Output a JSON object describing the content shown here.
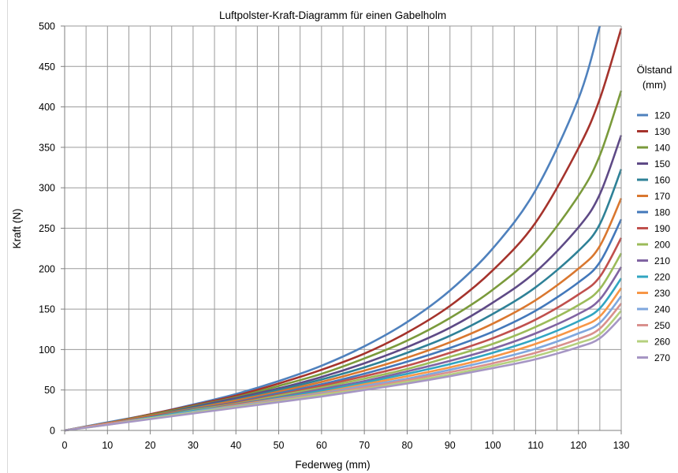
{
  "chart_data": {
    "type": "line",
    "title": "Luftpolster-Kraft-Diagramm für einen Gabelholm",
    "xlabel": "Federweg (mm)",
    "ylabel": "Kraft (N)",
    "xlim": [
      0,
      130
    ],
    "ylim": [
      0,
      500
    ],
    "x_ticks": [
      0,
      10,
      20,
      30,
      40,
      50,
      60,
      70,
      80,
      90,
      100,
      110,
      120,
      130
    ],
    "y_ticks": [
      0,
      50,
      100,
      150,
      200,
      250,
      300,
      350,
      400,
      450,
      500
    ],
    "grid": true,
    "legend": {
      "title_line1": "Ölstand",
      "title_line2": "(mm)",
      "placement": "right"
    },
    "x": [
      0,
      10,
      20,
      30,
      40,
      50,
      60,
      70,
      80,
      90,
      100,
      110,
      120,
      125,
      130
    ],
    "series": [
      {
        "name": "120",
        "color": "#4F81BD",
        "values": [
          0,
          10,
          20,
          32,
          45,
          61,
          80,
          104,
          134,
          173,
          225,
          297,
          410,
          500,
          null
        ]
      },
      {
        "name": "130",
        "color": "#A5332C",
        "values": [
          0,
          9,
          20,
          31,
          43,
          58,
          75,
          95,
          121,
          154,
          198,
          257,
          349,
          410,
          497
        ]
      },
      {
        "name": "140",
        "color": "#7A9A3B",
        "values": [
          0,
          9,
          19,
          30,
          41,
          55,
          70,
          89,
          111,
          139,
          174,
          220,
          290,
          340,
          420
        ]
      },
      {
        "name": "150",
        "color": "#5E4A86",
        "values": [
          0,
          9,
          18,
          29,
          40,
          52,
          66,
          83,
          103,
          127,
          158,
          196,
          251,
          292,
          365
        ]
      },
      {
        "name": "160",
        "color": "#2E8197",
        "values": [
          0,
          9,
          18,
          28,
          38,
          50,
          63,
          78,
          96,
          117,
          144,
          177,
          222,
          255,
          323
        ]
      },
      {
        "name": "170",
        "color": "#D9772F",
        "values": [
          0,
          9,
          18,
          27,
          37,
          48,
          60,
          74,
          90,
          109,
          132,
          161,
          200,
          228,
          287
        ]
      },
      {
        "name": "180",
        "color": "#4378BA",
        "values": [
          0,
          8,
          17,
          26,
          35,
          46,
          57,
          70,
          85,
          102,
          122,
          148,
          183,
          208,
          261
        ]
      },
      {
        "name": "190",
        "color": "#C0504D",
        "values": [
          0,
          8,
          17,
          25,
          34,
          44,
          55,
          67,
          80,
          96,
          114,
          137,
          168,
          190,
          238
        ]
      },
      {
        "name": "200",
        "color": "#9BBB59",
        "values": [
          0,
          8,
          16,
          25,
          33,
          43,
          53,
          64,
          76,
          91,
          107,
          128,
          155,
          175,
          219
        ]
      },
      {
        "name": "210",
        "color": "#8064A2",
        "values": [
          0,
          8,
          16,
          24,
          32,
          41,
          51,
          61,
          73,
          86,
          101,
          120,
          144,
          162,
          202
        ]
      },
      {
        "name": "220",
        "color": "#31A5C1",
        "values": [
          0,
          8,
          16,
          24,
          31,
          40,
          49,
          59,
          70,
          82,
          96,
          113,
          135,
          151,
          188
        ]
      },
      {
        "name": "230",
        "color": "#F79646",
        "values": [
          0,
          8,
          15,
          23,
          31,
          39,
          47,
          57,
          67,
          78,
          91,
          107,
          127,
          141,
          176
        ]
      },
      {
        "name": "240",
        "color": "#7FA7DE",
        "values": [
          0,
          8,
          15,
          23,
          30,
          38,
          46,
          55,
          64,
          75,
          87,
          101,
          120,
          133,
          166
        ]
      },
      {
        "name": "250",
        "color": "#D9908D",
        "values": [
          0,
          8,
          15,
          22,
          29,
          37,
          45,
          53,
          62,
          72,
          83,
          96,
          113,
          126,
          157
        ]
      },
      {
        "name": "260",
        "color": "#B5D07E",
        "values": [
          0,
          7,
          15,
          22,
          29,
          36,
          44,
          51,
          60,
          69,
          80,
          92,
          108,
          119,
          148
        ]
      },
      {
        "name": "270",
        "color": "#A696C4",
        "values": [
          0,
          7,
          14,
          21,
          28,
          35,
          42,
          50,
          58,
          67,
          77,
          88,
          103,
          114,
          140
        ]
      }
    ]
  }
}
